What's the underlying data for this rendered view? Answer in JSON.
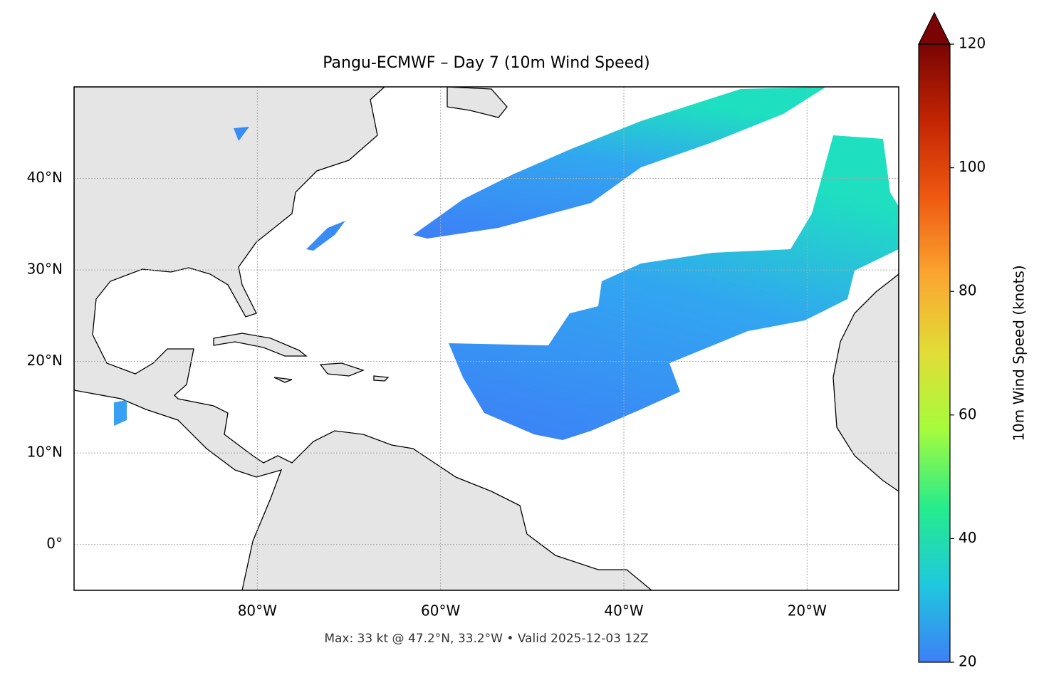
{
  "chart_data": {
    "type": "map",
    "title": "Pangu-ECMWF – Day 7 (10m Wind Speed)",
    "subtitle": "Max: 33 kt @ 47.2°N, 33.2°W • Valid 2025-12-03 12Z",
    "xlim": [
      -100,
      -10
    ],
    "ylim": [
      -5,
      50
    ],
    "xticks": [
      {
        "value": -80,
        "label": "80°W"
      },
      {
        "value": -60,
        "label": "60°W"
      },
      {
        "value": -40,
        "label": "40°W"
      },
      {
        "value": -20,
        "label": "20°W"
      }
    ],
    "yticks": [
      {
        "value": 0,
        "label": "0°"
      },
      {
        "value": 10,
        "label": "10°N"
      },
      {
        "value": 20,
        "label": "20°N"
      },
      {
        "value": 30,
        "label": "30°N"
      },
      {
        "value": 40,
        "label": "40°N"
      }
    ],
    "grid": true,
    "colorbar": {
      "label": "10m Wind Speed (knots)",
      "lim": [
        20,
        120
      ],
      "ticks": [
        20,
        40,
        60,
        80,
        100,
        120
      ],
      "extend": "max",
      "colors": [
        "#3d7ff7",
        "#1fc8dd",
        "#25ec8c",
        "#a4fc3c",
        "#e1dd37",
        "#fba731",
        "#ef5a11",
        "#c42503",
        "#7a0403"
      ]
    }
  }
}
